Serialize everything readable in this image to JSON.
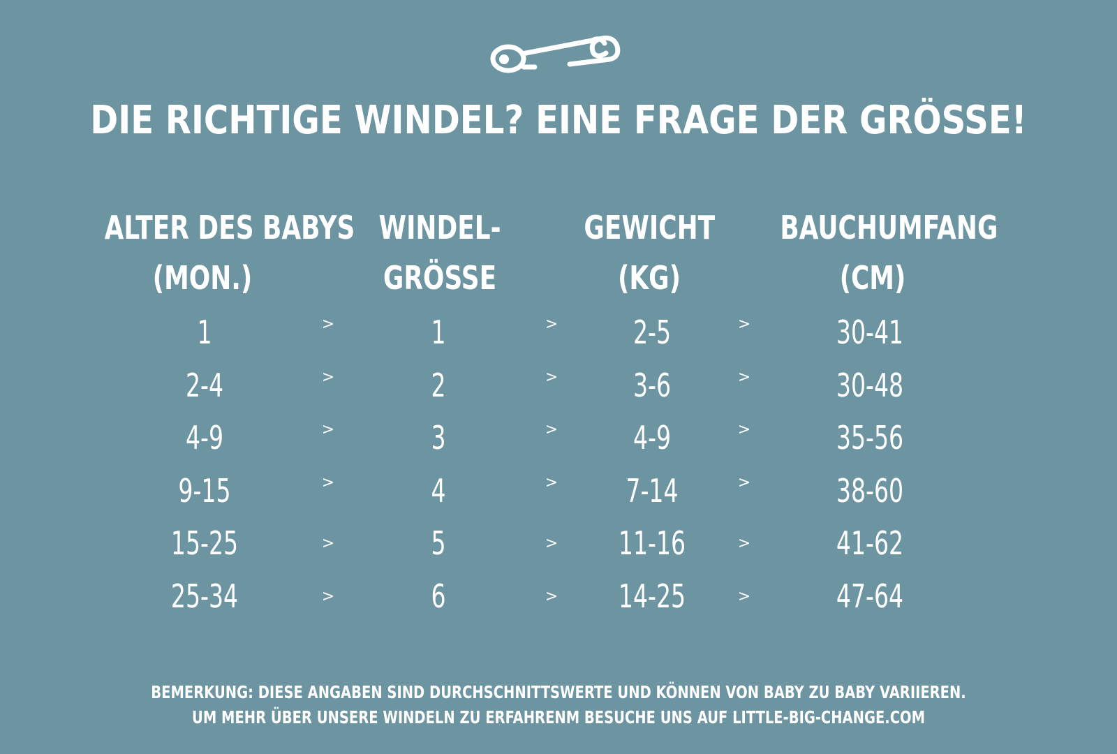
{
  "icon": "safety-pin-icon",
  "title": "DIE RICHTIGE WINDEL? EINE FRAGE DER GRÖSSE!",
  "columns": [
    {
      "line1": "ALTER DES BABYS",
      "line2": "(MON.)"
    },
    {
      "line1": "WINDEL-",
      "line2": "GRÖSSE"
    },
    {
      "line1": "GEWICHT",
      "line2": "(KG)"
    },
    {
      "line1": "BAUCHUMFANG",
      "line2": "(CM)"
    }
  ],
  "separator": ">",
  "rows": [
    [
      "1",
      "1",
      "2-5",
      "30-41"
    ],
    [
      "2-4",
      "2",
      "3-6",
      "30-48"
    ],
    [
      "4-9",
      "3",
      "4-9",
      "35-56"
    ],
    [
      "9-15",
      "4",
      "7-14",
      "38-60"
    ],
    [
      "15-25",
      "5",
      "11-16",
      "41-62"
    ],
    [
      "25-34",
      "6",
      "14-25",
      "47-64"
    ]
  ],
  "note": {
    "line1": "BEMERKUNG: DIESE ANGABEN SIND DURCHSCHNITTSWERTE UND KÖNNEN VON BABY ZU BABY VARIIEREN.",
    "line2": "UM MEHR ÜBER UNSERE WINDELN ZU ERFAHRENM BESUCHE UNS AUF LITTLE-BIG-CHANGE.COM"
  },
  "colors": {
    "background": "#6c94a1",
    "text": "#ffffff"
  }
}
